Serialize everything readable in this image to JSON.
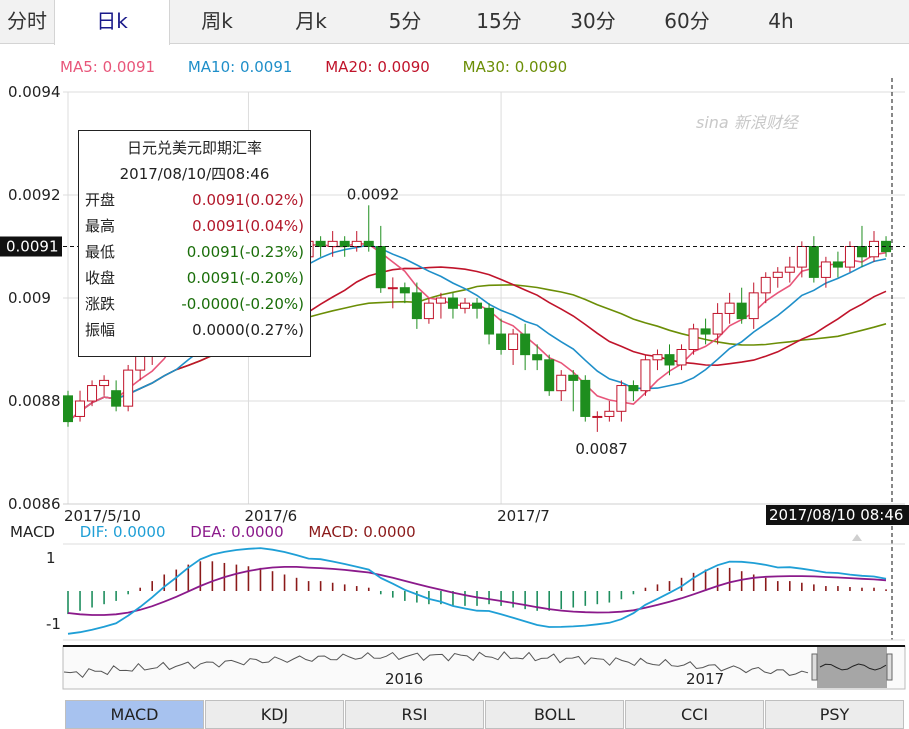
{
  "tabs": [
    {
      "label": "分时",
      "active": false
    },
    {
      "label": "日k",
      "active": true
    },
    {
      "label": "周k",
      "active": false
    },
    {
      "label": "月k",
      "active": false
    },
    {
      "label": "5分",
      "active": false
    },
    {
      "label": "15分",
      "active": false
    },
    {
      "label": "30分",
      "active": false
    },
    {
      "label": "60分",
      "active": false
    },
    {
      "label": "4h",
      "active": false
    }
  ],
  "ma_legend": [
    {
      "text": "MA5: 0.0091",
      "color": "#e8567a"
    },
    {
      "text": "MA10: 0.0091",
      "color": "#1f8fc9"
    },
    {
      "text": "MA20: 0.0090",
      "color": "#c0142b"
    },
    {
      "text": "MA30: 0.0090",
      "color": "#6b8e06"
    }
  ],
  "watermark": "sina 新浪财经",
  "tooltip": {
    "title": "日元兑美元即期汇率",
    "datetime": "2017/08/10/四08:46",
    "rows": [
      {
        "label": "开盘",
        "value": "0.0091(0.02%)",
        "tone": "up"
      },
      {
        "label": "最高",
        "value": "0.0091(0.04%)",
        "tone": "up"
      },
      {
        "label": "最低",
        "value": "0.0091(-0.23%)",
        "tone": "dn"
      },
      {
        "label": "收盘",
        "value": "0.0091(-0.20%)",
        "tone": "dn"
      },
      {
        "label": "涨跌",
        "value": "-0.0000(-0.20%)",
        "tone": "dn"
      },
      {
        "label": "振幅",
        "value": "0.0000(0.27%)",
        "tone": "plain"
      }
    ]
  },
  "price_marker": "0.0091",
  "time_marker": "2017/08/10 08:46",
  "macd_legend": {
    "name": "MACD",
    "dif": "DIF: 0.0000",
    "dea": "DEA: 0.0000",
    "macd": "MACD: 0.0000"
  },
  "overview_labels": [
    "2016",
    "2017"
  ],
  "indicator_tabs": [
    {
      "label": "MACD",
      "active": true
    },
    {
      "label": "KDJ",
      "active": false
    },
    {
      "label": "RSI",
      "active": false
    },
    {
      "label": "BOLL",
      "active": false
    },
    {
      "label": "CCI",
      "active": false
    },
    {
      "label": "PSY",
      "active": false
    }
  ],
  "colors": {
    "up": "#c0142b",
    "down": "#1e8e1e",
    "dif": "#1f9fd6",
    "dea": "#8b1a8b",
    "ma5": "#e8567a",
    "ma10": "#1f8fc9",
    "ma20": "#c0142b",
    "ma30": "#6b8e06"
  },
  "chart_data": [
    {
      "type": "candlestick",
      "title": "日元兑美元即期汇率",
      "y_ticks": [
        "0.0094",
        "0.0092",
        "0.009",
        "0.0088",
        "0.0086"
      ],
      "ylim": [
        0.0086,
        0.0094
      ],
      "x_ticks": [
        {
          "label": "2017/5/10",
          "index": 0
        },
        {
          "label": "2017/6",
          "index": 15
        },
        {
          "label": "2017/7",
          "index": 36
        }
      ],
      "annotations": [
        {
          "text": "0.0092",
          "index": 25,
          "value": 0.00918
        },
        {
          "text": "0.0087",
          "index": 44,
          "value": 0.00874
        }
      ],
      "candles": [
        [
          0.00881,
          0.00876,
          0.00882,
          0.00875
        ],
        [
          0.00877,
          0.0088,
          0.00882,
          0.00876
        ],
        [
          0.0088,
          0.00883,
          0.00884,
          0.00879
        ],
        [
          0.00883,
          0.00884,
          0.00885,
          0.00881
        ],
        [
          0.00882,
          0.00879,
          0.00884,
          0.00878
        ],
        [
          0.00879,
          0.00886,
          0.00887,
          0.00878
        ],
        [
          0.00886,
          0.00889,
          0.00891,
          0.00884
        ],
        [
          0.00889,
          0.00891,
          0.00893,
          0.00887
        ],
        [
          0.00891,
          0.00896,
          0.00897,
          0.00889
        ],
        [
          0.00896,
          0.00897,
          0.00899,
          0.00893
        ],
        [
          0.00897,
          0.00895,
          0.009,
          0.00893
        ],
        [
          0.00895,
          0.00898,
          0.009,
          0.00894
        ],
        [
          0.00898,
          0.00901,
          0.00902,
          0.00896
        ],
        [
          0.00901,
          0.00904,
          0.00905,
          0.00899
        ],
        [
          0.00904,
          0.00907,
          0.00909,
          0.00902
        ],
        [
          0.00907,
          0.00905,
          0.0091,
          0.00903
        ],
        [
          0.00905,
          0.00909,
          0.00911,
          0.00904
        ],
        [
          0.00909,
          0.00913,
          0.00916,
          0.00907
        ],
        [
          0.00913,
          0.0091,
          0.00915,
          0.00908
        ],
        [
          0.0091,
          0.00908,
          0.00912,
          0.00906
        ],
        [
          0.00908,
          0.00911,
          0.00912,
          0.00906
        ],
        [
          0.00911,
          0.0091,
          0.00912,
          0.00908
        ],
        [
          0.0091,
          0.00911,
          0.00913,
          0.00908
        ],
        [
          0.00911,
          0.0091,
          0.00912,
          0.00908
        ],
        [
          0.0091,
          0.00911,
          0.00913,
          0.00909
        ],
        [
          0.00911,
          0.0091,
          0.00918,
          0.00909
        ],
        [
          0.0091,
          0.00902,
          0.00914,
          0.00901
        ],
        [
          0.00902,
          0.00902,
          0.00904,
          0.00898
        ],
        [
          0.00902,
          0.00901,
          0.00903,
          0.00899
        ],
        [
          0.00901,
          0.00896,
          0.00903,
          0.00894
        ],
        [
          0.00896,
          0.00899,
          0.009,
          0.00895
        ],
        [
          0.00899,
          0.009,
          0.00901,
          0.00896
        ],
        [
          0.009,
          0.00898,
          0.00901,
          0.00896
        ],
        [
          0.00898,
          0.00899,
          0.009,
          0.00897
        ],
        [
          0.00899,
          0.00898,
          0.009,
          0.00896
        ],
        [
          0.00898,
          0.00893,
          0.00899,
          0.00891
        ],
        [
          0.00893,
          0.0089,
          0.00896,
          0.00889
        ],
        [
          0.0089,
          0.00893,
          0.00894,
          0.00887
        ],
        [
          0.00893,
          0.00889,
          0.00895,
          0.00886
        ],
        [
          0.00889,
          0.00888,
          0.00891,
          0.00886
        ],
        [
          0.00888,
          0.00882,
          0.00889,
          0.00881
        ],
        [
          0.00882,
          0.00885,
          0.00886,
          0.0088
        ],
        [
          0.00885,
          0.00884,
          0.00886,
          0.00878
        ],
        [
          0.00884,
          0.00877,
          0.00885,
          0.00876
        ],
        [
          0.00877,
          0.00877,
          0.00878,
          0.00874
        ],
        [
          0.00877,
          0.00878,
          0.0088,
          0.00876
        ],
        [
          0.00878,
          0.00883,
          0.00884,
          0.00876
        ],
        [
          0.00883,
          0.00882,
          0.00884,
          0.0088
        ],
        [
          0.00882,
          0.00888,
          0.00889,
          0.00881
        ],
        [
          0.00888,
          0.00889,
          0.0089,
          0.00886
        ],
        [
          0.00889,
          0.00887,
          0.00891,
          0.00885
        ],
        [
          0.00887,
          0.0089,
          0.00891,
          0.00886
        ],
        [
          0.0089,
          0.00894,
          0.00895,
          0.00889
        ],
        [
          0.00894,
          0.00893,
          0.00896,
          0.00891
        ],
        [
          0.00893,
          0.00897,
          0.00899,
          0.00891
        ],
        [
          0.00897,
          0.00899,
          0.00901,
          0.00895
        ],
        [
          0.00899,
          0.00896,
          0.00902,
          0.00895
        ],
        [
          0.00896,
          0.00901,
          0.00903,
          0.00894
        ],
        [
          0.00901,
          0.00904,
          0.00905,
          0.00899
        ],
        [
          0.00904,
          0.00905,
          0.00906,
          0.00902
        ],
        [
          0.00905,
          0.00906,
          0.00908,
          0.00903
        ],
        [
          0.00906,
          0.0091,
          0.00911,
          0.00904
        ],
        [
          0.0091,
          0.00904,
          0.00912,
          0.00903
        ],
        [
          0.00904,
          0.00907,
          0.00908,
          0.00902
        ],
        [
          0.00907,
          0.00906,
          0.00909,
          0.00904
        ],
        [
          0.00906,
          0.0091,
          0.00911,
          0.00905
        ],
        [
          0.0091,
          0.00908,
          0.00914,
          0.00906
        ],
        [
          0.00908,
          0.00911,
          0.00913,
          0.00907
        ],
        [
          0.00911,
          0.00909,
          0.00912,
          0.00908
        ]
      ]
    },
    {
      "type": "bar",
      "title": "MACD",
      "y_ticks": [
        "1",
        "-1"
      ],
      "ylim": [
        -1.2,
        1.2
      ],
      "histogram": [
        -0.7,
        -0.6,
        -0.5,
        -0.4,
        -0.3,
        -0.1,
        0.1,
        0.3,
        0.5,
        0.65,
        0.8,
        0.9,
        0.9,
        0.85,
        0.8,
        0.75,
        0.7,
        0.6,
        0.5,
        0.4,
        0.3,
        0.3,
        0.25,
        0.2,
        0.15,
        0.1,
        -0.1,
        -0.2,
        -0.3,
        -0.35,
        -0.4,
        -0.4,
        -0.45,
        -0.45,
        -0.45,
        -0.4,
        -0.45,
        -0.5,
        -0.55,
        -0.6,
        -0.6,
        -0.55,
        -0.5,
        -0.45,
        -0.4,
        -0.35,
        -0.25,
        -0.1,
        0.1,
        0.2,
        0.3,
        0.4,
        0.55,
        0.65,
        0.7,
        0.7,
        0.6,
        0.5,
        0.4,
        0.3,
        0.3,
        0.25,
        0.2,
        0.15,
        0.15,
        0.12,
        0.1,
        0.1,
        0.05
      ]
    }
  ]
}
